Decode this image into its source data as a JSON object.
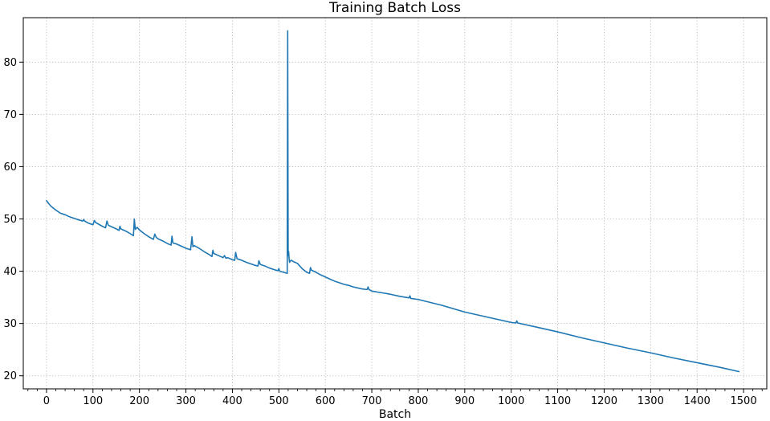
{
  "chart_data": {
    "type": "line",
    "title": "Training Batch Loss",
    "xlabel": "Batch",
    "ylabel": "",
    "xlim": [
      -50,
      1550
    ],
    "ylim": [
      17.5,
      88.5
    ],
    "x_ticks": [
      0,
      100,
      200,
      300,
      400,
      500,
      600,
      700,
      800,
      900,
      1000,
      1100,
      1200,
      1300,
      1400,
      1500
    ],
    "x_tick_labels": [
      "0",
      "100",
      "200",
      "300",
      "400",
      "500",
      "600",
      "700",
      "800",
      "900",
      "1000",
      "1100",
      "1200",
      "1300",
      "1400",
      "1500"
    ],
    "x_minor_step": 20,
    "y_ticks": [
      20,
      30,
      40,
      50,
      60,
      70,
      80
    ],
    "y_tick_labels": [
      "20",
      "30",
      "40",
      "50",
      "60",
      "70",
      "80"
    ],
    "grid": true,
    "grid_style": "dotted",
    "series_color": "#1f77b4",
    "series": [
      {
        "x": [
          0,
          5,
          10,
          20,
          30,
          40,
          50,
          60,
          70,
          78,
          80,
          82,
          90,
          100,
          103,
          106,
          110,
          120,
          127,
          130,
          133,
          140,
          150,
          156,
          158,
          160,
          170,
          180,
          187,
          189,
          191,
          195,
          200,
          210,
          220,
          230,
          233,
          236,
          240,
          250,
          260,
          268,
          270,
          272,
          280,
          290,
          300,
          310,
          313,
          315,
          318,
          330,
          340,
          350,
          356,
          358,
          360,
          370,
          380,
          383,
          386,
          390,
          400,
          405,
          407,
          410,
          420,
          430,
          440,
          450,
          455,
          457,
          460,
          470,
          480,
          490,
          498,
          500,
          502,
          510,
          518,
          519,
          520,
          521,
          522,
          523,
          525,
          527,
          530,
          540,
          550,
          560,
          566,
          568,
          570,
          580,
          590,
          600,
          610,
          620,
          630,
          640,
          650,
          660,
          670,
          680,
          690,
          692,
          694,
          700,
          720,
          740,
          760,
          780,
          782,
          784,
          800,
          850,
          900,
          950,
          1000,
          1010,
          1012,
          1014,
          1050,
          1100,
          1150,
          1200,
          1250,
          1300,
          1350,
          1400,
          1450,
          1490
        ],
        "y": [
          53.5,
          52.9,
          52.4,
          51.7,
          51.1,
          50.8,
          50.4,
          50.1,
          49.8,
          49.6,
          49.9,
          49.6,
          49.2,
          48.9,
          49.7,
          49.3,
          49.1,
          48.6,
          48.3,
          49.6,
          48.8,
          48.5,
          48.1,
          47.8,
          48.6,
          48.1,
          47.7,
          47.2,
          46.8,
          50.0,
          48.0,
          48.4,
          47.9,
          47.2,
          46.6,
          46.1,
          47.1,
          46.5,
          46.2,
          45.8,
          45.3,
          45.0,
          46.7,
          45.4,
          45.2,
          44.8,
          44.4,
          44.1,
          46.6,
          44.7,
          44.9,
          44.3,
          43.7,
          43.2,
          42.8,
          44.0,
          43.4,
          43.0,
          42.6,
          43.0,
          42.5,
          42.6,
          42.2,
          42.1,
          43.6,
          42.4,
          42.1,
          41.7,
          41.4,
          41.1,
          41.0,
          42.0,
          41.3,
          41.0,
          40.6,
          40.3,
          40.1,
          40.5,
          40.0,
          39.8,
          39.6,
          86.0,
          43.0,
          43.8,
          42.5,
          41.7,
          42.0,
          42.1,
          41.9,
          41.5,
          40.5,
          39.8,
          39.6,
          40.7,
          40.2,
          39.8,
          39.3,
          38.9,
          38.5,
          38.1,
          37.8,
          37.5,
          37.3,
          37.0,
          36.8,
          36.6,
          36.5,
          37.0,
          36.5,
          36.2,
          35.9,
          35.6,
          35.2,
          34.9,
          35.3,
          34.8,
          34.6,
          33.5,
          32.2,
          31.2,
          30.2,
          30.1,
          30.5,
          30.1,
          29.4,
          28.4,
          27.3,
          26.3,
          25.3,
          24.4,
          23.4,
          22.5,
          21.6,
          20.8
        ]
      }
    ]
  }
}
